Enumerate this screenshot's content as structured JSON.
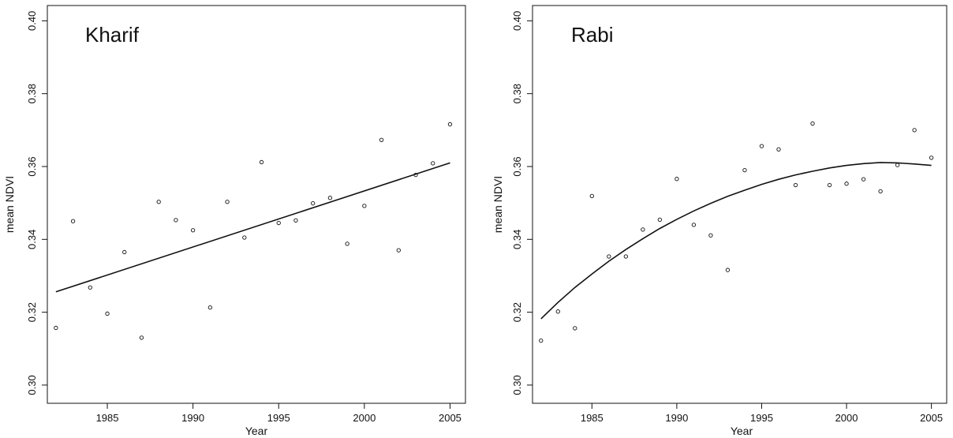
{
  "chart_data": [
    {
      "type": "scatter",
      "title": "Kharif",
      "xlabel": "Year",
      "ylabel": "mean NDVI",
      "xlim": [
        1981.5,
        2005.9
      ],
      "ylim": [
        0.295,
        0.4042
      ],
      "xticks": [
        1985,
        1990,
        1995,
        2000,
        2005
      ],
      "yticks": [
        0.3,
        0.32,
        0.34,
        0.36,
        0.38,
        0.4
      ],
      "ytick_labels": [
        "0.30",
        "0.32",
        "0.34",
        "0.36",
        "0.38",
        "0.40"
      ],
      "grid": false,
      "points": {
        "x": [
          1982,
          1983,
          1984,
          1985,
          1986,
          1987,
          1988,
          1989,
          1990,
          1991,
          1992,
          1993,
          1994,
          1995,
          1996,
          1997,
          1998,
          1999,
          2000,
          2001,
          2002,
          2003,
          2004,
          2005
        ],
        "y": [
          0.3157,
          0.345,
          0.3268,
          0.3196,
          0.3365,
          0.313,
          0.3503,
          0.3453,
          0.3425,
          0.3213,
          0.3503,
          0.3405,
          0.3612,
          0.3445,
          0.3452,
          0.3499,
          0.3514,
          0.3388,
          0.3492,
          0.3673,
          0.337,
          0.3577,
          0.3609,
          0.3716
        ]
      },
      "fit": {
        "kind": "linear",
        "x": [
          1982,
          2005
        ],
        "y": [
          0.3256,
          0.361
        ]
      }
    },
    {
      "type": "scatter",
      "title": "Rabi",
      "xlabel": "Year",
      "ylabel": "mean NDVI",
      "xlim": [
        1981.5,
        2005.9
      ],
      "ylim": [
        0.295,
        0.4042
      ],
      "xticks": [
        1985,
        1990,
        1995,
        2000,
        2005
      ],
      "yticks": [
        0.3,
        0.32,
        0.34,
        0.36,
        0.38,
        0.4
      ],
      "ytick_labels": [
        "0.30",
        "0.32",
        "0.34",
        "0.36",
        "0.38",
        "0.40"
      ],
      "grid": false,
      "points": {
        "x": [
          1982,
          1983,
          1984,
          1985,
          1986,
          1987,
          1988,
          1989,
          1990,
          1991,
          1992,
          1993,
          1994,
          1995,
          1996,
          1997,
          1998,
          1999,
          2000,
          2001,
          2002,
          2003,
          2004,
          2005
        ],
        "y": [
          0.3122,
          0.3202,
          0.3156,
          0.3519,
          0.3353,
          0.3353,
          0.3427,
          0.3454,
          0.3566,
          0.344,
          0.3411,
          0.3316,
          0.359,
          0.3656,
          0.3647,
          0.3549,
          0.3718,
          0.3549,
          0.3553,
          0.3565,
          0.3532,
          0.3604,
          0.37,
          0.3624
        ]
      },
      "fit": {
        "kind": "quadratic",
        "x": [
          1982,
          1983,
          1984,
          1985,
          1986,
          1987,
          1988,
          1989,
          1990,
          1991,
          1992,
          1993,
          1994,
          1995,
          1996,
          1997,
          1998,
          1999,
          2000,
          2001,
          2002,
          2003,
          2004,
          2005
        ],
        "y": [
          0.3182,
          0.3227,
          0.3268,
          0.3305,
          0.334,
          0.3372,
          0.3402,
          0.343,
          0.3455,
          0.3478,
          0.3499,
          0.3518,
          0.3535,
          0.3551,
          0.3565,
          0.3577,
          0.3587,
          0.3596,
          0.3603,
          0.3608,
          0.3611,
          0.361,
          0.3607,
          0.3603
        ]
      }
    }
  ]
}
